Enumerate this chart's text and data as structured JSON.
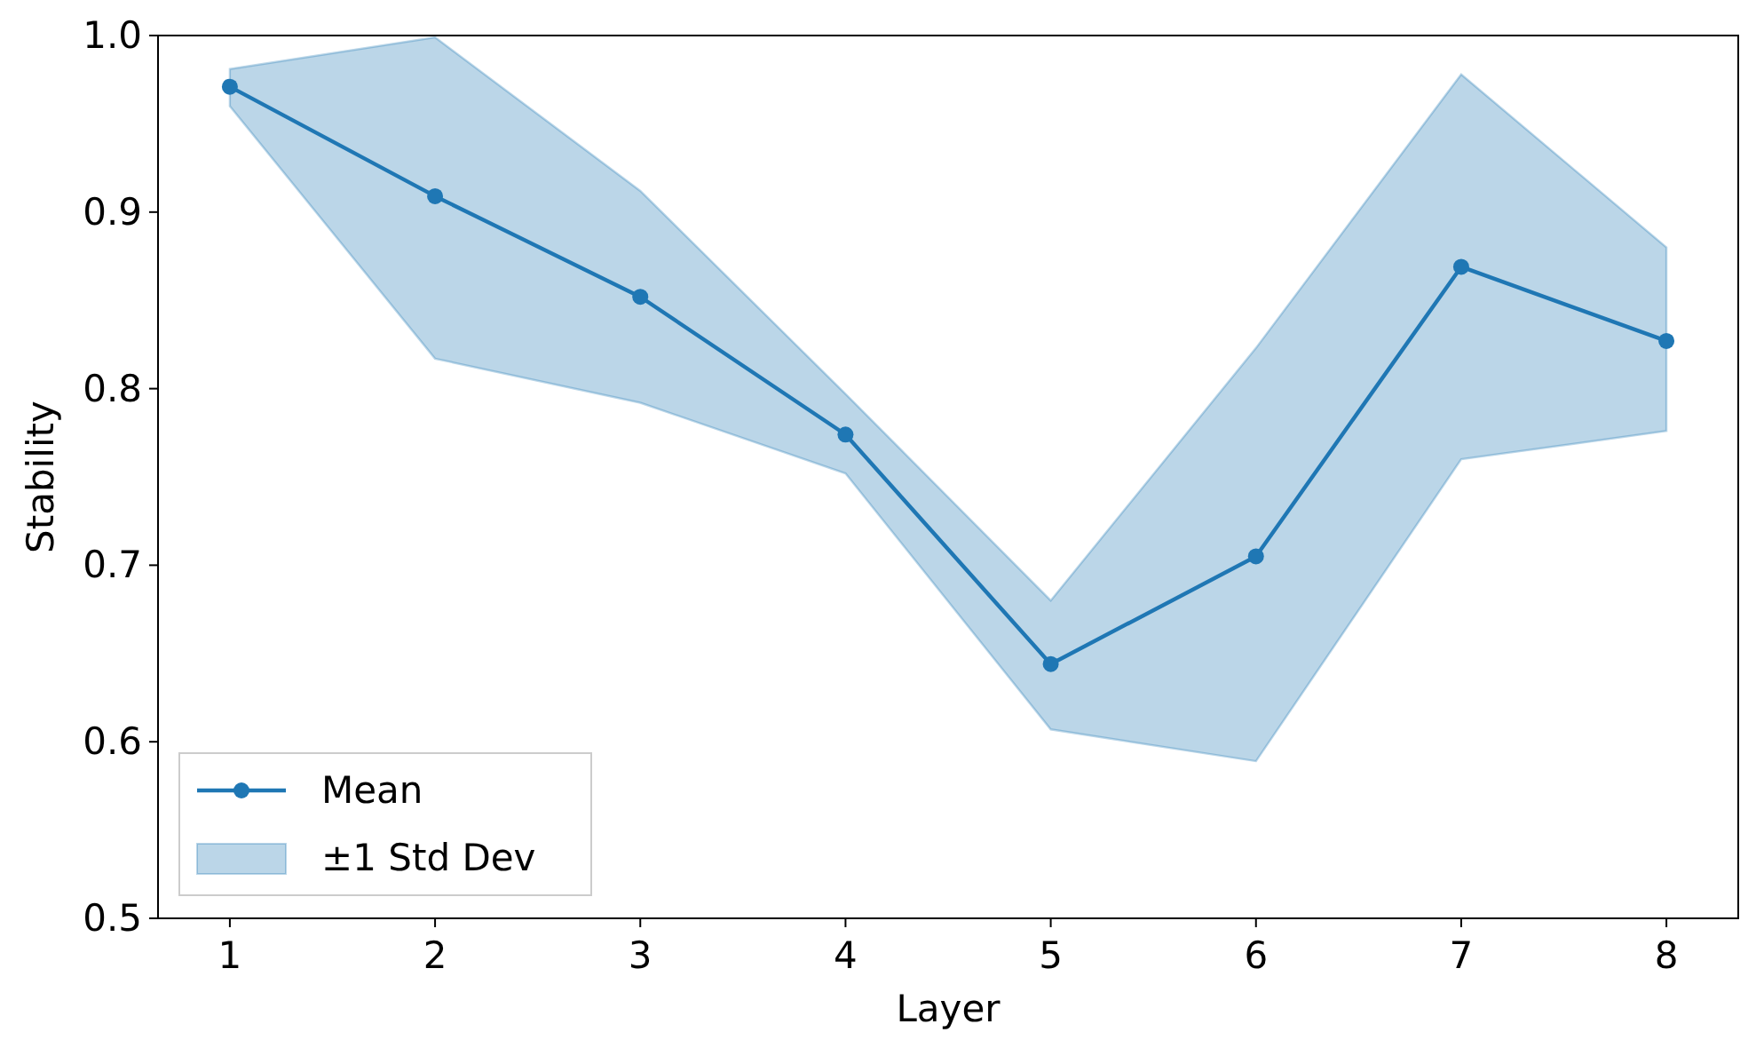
{
  "chart_data": {
    "type": "line",
    "xlabel": "Layer",
    "ylabel": "Stability",
    "x": [
      1,
      2,
      3,
      4,
      5,
      6,
      7,
      8
    ],
    "xlim": [
      0.65,
      8.35
    ],
    "xticks": [
      1,
      2,
      3,
      4,
      5,
      6,
      7,
      8
    ],
    "ylim": [
      0.5,
      1.0
    ],
    "yticks": [
      {
        "value": 0.5,
        "label": "0.5"
      },
      {
        "value": 0.6,
        "label": "0.6"
      },
      {
        "value": 0.7,
        "label": "0.7"
      },
      {
        "value": 0.8,
        "label": "0.8"
      },
      {
        "value": 0.9,
        "label": "0.9"
      },
      {
        "value": 1.0,
        "label": "1.0"
      }
    ],
    "series": [
      {
        "name": "Mean",
        "color": "#1f77b4",
        "values": [
          0.971,
          0.909,
          0.852,
          0.774,
          0.644,
          0.705,
          0.869,
          0.827
        ],
        "lower": [
          0.96,
          0.817,
          0.792,
          0.752,
          0.607,
          0.589,
          0.76,
          0.776
        ],
        "upper": [
          0.981,
          0.999,
          0.912,
          0.797,
          0.68,
          0.823,
          0.978,
          0.88
        ]
      }
    ],
    "annotations": [
      "±1 Std Dev"
    ],
    "marker": "circle",
    "line_style": "solid",
    "legend": "bottom left",
    "grid": false
  }
}
